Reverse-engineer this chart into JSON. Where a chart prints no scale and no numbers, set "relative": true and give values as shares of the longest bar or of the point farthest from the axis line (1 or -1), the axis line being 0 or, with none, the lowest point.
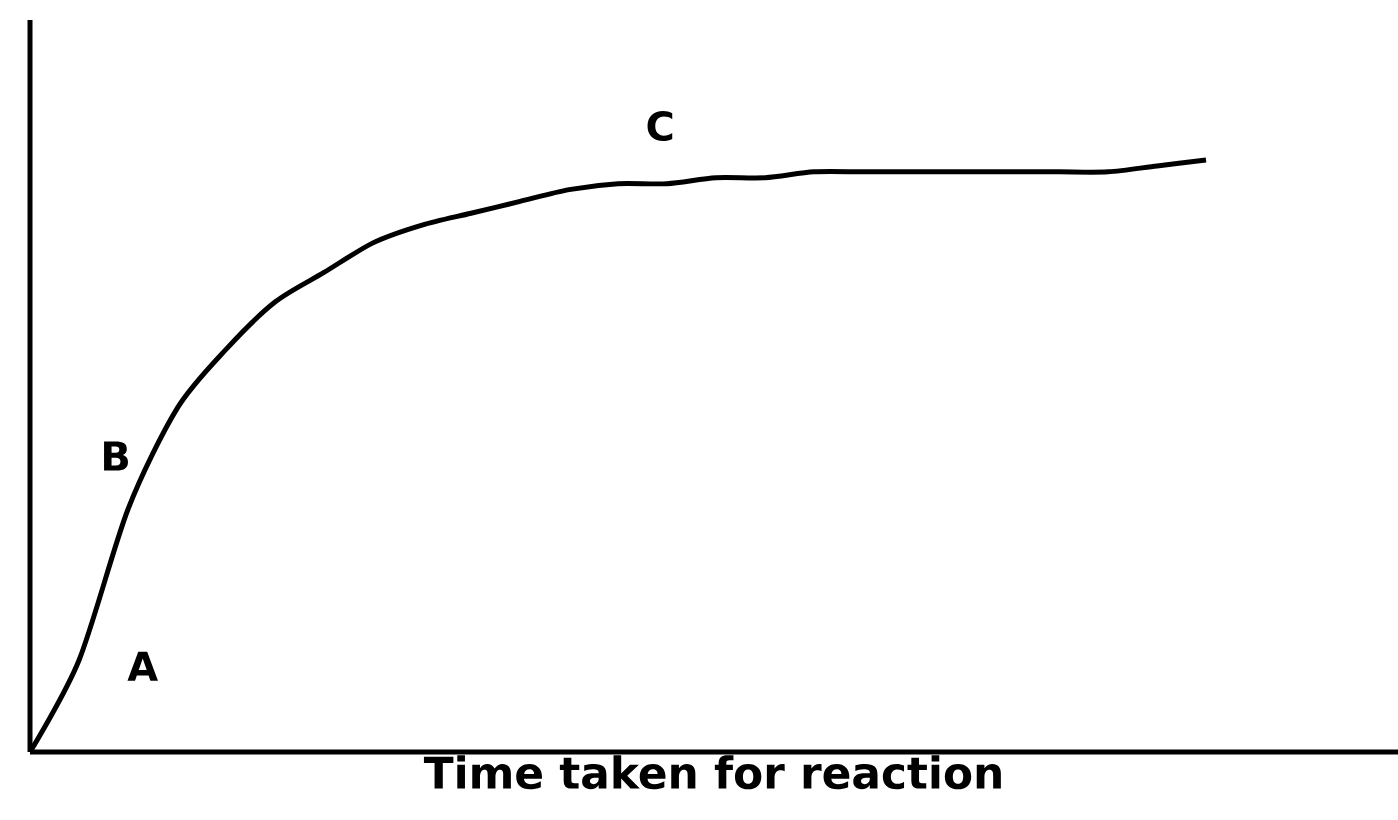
{
  "chart_data": {
    "type": "line",
    "relative": true,
    "xlabel": "Time taken for reaction",
    "color": "#000000",
    "categories": [
      null,
      null,
      null,
      null,
      null,
      null,
      null,
      null,
      null,
      null,
      null,
      null,
      null,
      null,
      null,
      null,
      null,
      null,
      null,
      null,
      null,
      null,
      null,
      null,
      null
    ],
    "values": [
      0,
      0.155,
      0.41,
      0.58,
      0.68,
      0.76,
      0.81,
      0.86,
      0.89,
      0.91,
      0.93,
      0.95,
      0.96,
      0.96,
      0.97,
      0.97,
      0.98,
      0.98,
      0.98,
      0.98,
      0.98,
      0.98,
      0.98,
      0.99,
      1
    ],
    "annotations": [
      "A",
      "B",
      "C"
    ]
  }
}
